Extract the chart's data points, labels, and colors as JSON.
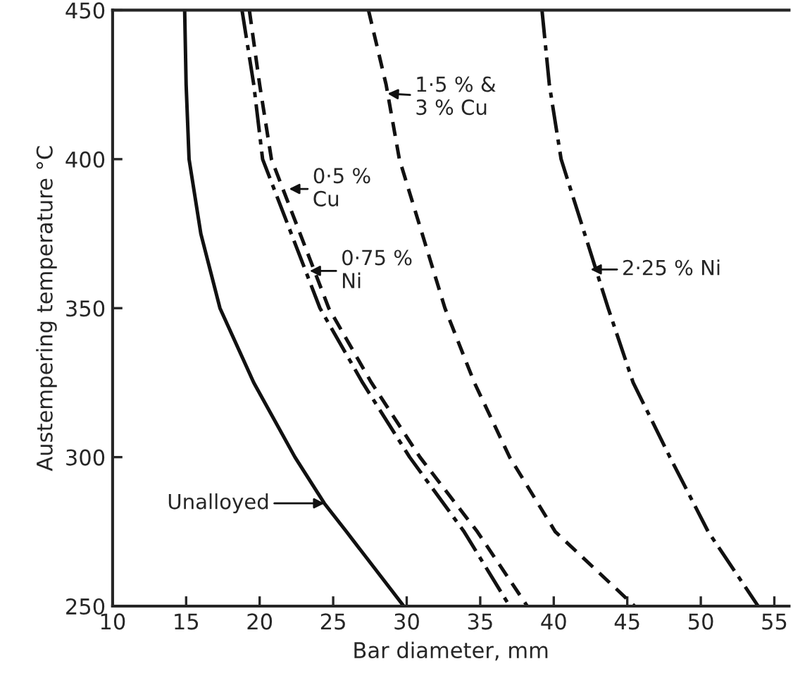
{
  "chart_data": {
    "type": "line",
    "xlabel": "Bar diameter, mm",
    "ylabel": "Austempering temperature °C",
    "xlim": [
      10,
      56
    ],
    "ylim": [
      250,
      450
    ],
    "xticks": [
      10,
      15,
      20,
      25,
      30,
      35,
      40,
      45,
      50,
      55
    ],
    "yticks": [
      250,
      300,
      350,
      400,
      450
    ],
    "grid": false,
    "legend": false,
    "marker": "none",
    "series": [
      {
        "color": "#111111",
        "line_style": "solid",
        "x": [
          14.9,
          15.0,
          15.2,
          16.0,
          17.3,
          19.6,
          22.4,
          24.4,
          25.9,
          29.8
        ],
        "values": [
          450,
          425,
          400,
          375,
          350,
          325,
          300,
          284.5,
          275,
          250
        ]
      },
      {
        "color": "#111111",
        "line_style": "dashdot",
        "x": [
          18.8,
          19.6,
          20.2,
          24.1,
          27.0,
          30.2,
          33.9,
          37.0
        ],
        "values": [
          450,
          425,
          400,
          350,
          325,
          300,
          275,
          250
        ]
      },
      {
        "color": "#111111",
        "line_style": "dashed",
        "x": [
          19.3,
          20.0,
          20.8,
          24.7,
          27.6,
          30.9,
          34.8,
          38.2
        ],
        "values": [
          450,
          425,
          400,
          350,
          325,
          300,
          275,
          250
        ]
      },
      {
        "color": "#111111",
        "line_style": "dashed",
        "x": [
          27.4,
          28.6,
          29.5,
          32.6,
          34.6,
          37.0,
          40.1,
          45.5
        ],
        "values": [
          450,
          425,
          400,
          350,
          325,
          300,
          275,
          250
        ]
      },
      {
        "color": "#111111",
        "line_style": "dashdot",
        "x": [
          39.2,
          39.7,
          40.5,
          43.7,
          45.4,
          47.9,
          50.5,
          53.9
        ],
        "values": [
          450,
          425,
          400,
          350,
          325,
          300,
          275,
          250
        ]
      }
    ],
    "annotations": [
      {
        "text": "Unalloyed",
        "x": 24.4,
        "y": 284.5
      },
      {
        "text": "0·5 %\nCu",
        "x": 22.0,
        "y": 390
      },
      {
        "text": "0·75 %\nNi",
        "x": 23.4,
        "y": 362.5
      },
      {
        "text": "1·5 % &\n3 % Cu",
        "x": 28.7,
        "y": 422
      },
      {
        "text": "2·25 % Ni",
        "x": 42.5,
        "y": 363
      }
    ]
  }
}
